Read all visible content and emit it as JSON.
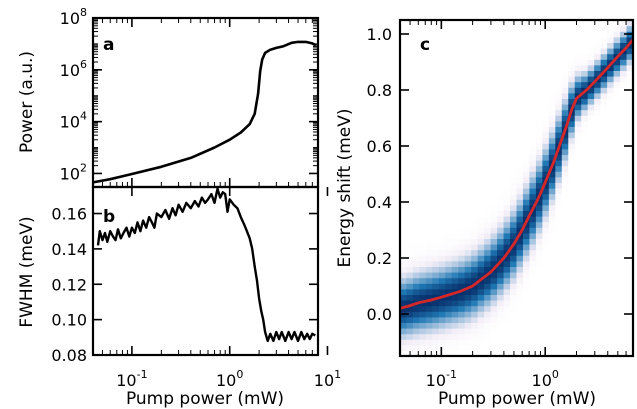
{
  "chart_data": [
    {
      "panel": "a",
      "type": "line",
      "ylabel": "Power (a.u.)",
      "xscale": "log",
      "yscale": "log",
      "xlim": [
        0.04,
        8
      ],
      "ylim": [
        30,
        100000000
      ],
      "yticks": [
        {
          "value": 100,
          "base": "10",
          "exp": "2"
        },
        {
          "value": 10000,
          "base": "10",
          "exp": "4"
        },
        {
          "value": 1000000,
          "base": "10",
          "exp": "6"
        },
        {
          "value": 100000000,
          "base": "10",
          "exp": "8"
        }
      ],
      "x": [
        0.04,
        0.06,
        0.1,
        0.2,
        0.4,
        0.7,
        1.0,
        1.3,
        1.6,
        1.8,
        1.95,
        2.05,
        2.15,
        2.3,
        2.6,
        3.0,
        3.5,
        4.3,
        5.0,
        6.0,
        7.0,
        7.6
      ],
      "values": [
        45,
        60,
        95,
        180,
        400,
        1000,
        2000,
        3800,
        8000,
        20000,
        120000,
        900000,
        2500000,
        4500000,
        6000000,
        7000000,
        8000000,
        11000000,
        12000000,
        12000000,
        10500000,
        9000000
      ],
      "color": "#000000"
    },
    {
      "panel": "b",
      "type": "line",
      "ylabel": "FWHM (meV)",
      "xlabel": "Pump power (mW)",
      "xscale": "log",
      "xlim": [
        0.04,
        8
      ],
      "ylim": [
        0.08,
        0.175
      ],
      "yticks": [
        "0.08",
        "0.10",
        "0.12",
        "0.14",
        "0.16"
      ],
      "xticks": [
        {
          "value": 0.1,
          "base": "10",
          "exp": "-1"
        },
        {
          "value": 1,
          "base": "10",
          "exp": "0"
        },
        {
          "value": 10,
          "base": "10",
          "exp": "1"
        }
      ],
      "x": [
        0.045,
        0.047,
        0.05,
        0.053,
        0.056,
        0.06,
        0.064,
        0.068,
        0.072,
        0.077,
        0.082,
        0.088,
        0.094,
        0.1,
        0.107,
        0.114,
        0.122,
        0.13,
        0.14,
        0.15,
        0.16,
        0.17,
        0.18,
        0.2,
        0.22,
        0.24,
        0.26,
        0.28,
        0.3,
        0.33,
        0.36,
        0.4,
        0.44,
        0.48,
        0.52,
        0.56,
        0.6,
        0.65,
        0.7,
        0.75,
        0.8,
        0.85,
        0.9,
        0.95,
        1.0,
        1.1,
        1.2,
        1.3,
        1.4,
        1.5,
        1.6,
        1.7,
        1.8,
        1.9,
        2.0,
        2.1,
        2.2,
        2.3,
        2.45,
        2.6,
        2.8,
        3.0,
        3.2,
        3.4,
        3.7,
        4.0,
        4.3,
        4.6,
        5.0,
        5.4,
        5.8,
        6.2,
        6.6,
        7.0,
        7.5
      ],
      "values": [
        0.142,
        0.15,
        0.145,
        0.149,
        0.144,
        0.15,
        0.147,
        0.145,
        0.151,
        0.146,
        0.149,
        0.152,
        0.147,
        0.152,
        0.149,
        0.155,
        0.15,
        0.156,
        0.152,
        0.158,
        0.155,
        0.152,
        0.16,
        0.158,
        0.162,
        0.157,
        0.163,
        0.159,
        0.165,
        0.161,
        0.166,
        0.163,
        0.167,
        0.164,
        0.169,
        0.166,
        0.168,
        0.171,
        0.166,
        0.174,
        0.169,
        0.172,
        0.171,
        0.161,
        0.168,
        0.165,
        0.163,
        0.158,
        0.154,
        0.15,
        0.146,
        0.14,
        0.13,
        0.122,
        0.112,
        0.105,
        0.1,
        0.093,
        0.088,
        0.092,
        0.088,
        0.093,
        0.089,
        0.093,
        0.088,
        0.093,
        0.089,
        0.093,
        0.088,
        0.093,
        0.089,
        0.092,
        0.089,
        0.092,
        0.091
      ],
      "color": "#000000"
    },
    {
      "panel": "c",
      "type": "heatmap",
      "xlabel": "Pump power (mW)",
      "ylabel": "Energy shift (meV)",
      "xscale": "log",
      "xlim": [
        0.04,
        7
      ],
      "ylim": [
        -0.15,
        1.05
      ],
      "yticks": [
        "0.0",
        "0.2",
        "0.4",
        "0.6",
        "0.8",
        "1.0"
      ],
      "xticks": [
        {
          "value": 0.1,
          "base": "10",
          "exp": "-1"
        },
        {
          "value": 1,
          "base": "10",
          "exp": "0"
        }
      ],
      "peak_x": [
        0.04,
        0.05,
        0.06,
        0.08,
        0.1,
        0.15,
        0.2,
        0.3,
        0.4,
        0.5,
        0.6,
        0.7,
        0.8,
        0.9,
        1.0,
        1.2,
        1.4,
        1.6,
        1.8,
        2.0,
        2.5,
        3.0,
        4.0,
        5.0,
        6.0,
        7.0
      ],
      "peak_y": [
        0.02,
        0.03,
        0.04,
        0.05,
        0.06,
        0.08,
        0.1,
        0.15,
        0.2,
        0.25,
        0.3,
        0.35,
        0.39,
        0.43,
        0.47,
        0.54,
        0.61,
        0.67,
        0.73,
        0.77,
        0.8,
        0.83,
        0.88,
        0.92,
        0.95,
        0.98
      ],
      "linewidth_meV": [
        0.145,
        0.148,
        0.15,
        0.152,
        0.152,
        0.155,
        0.158,
        0.162,
        0.165,
        0.167,
        0.169,
        0.171,
        0.172,
        0.17,
        0.168,
        0.163,
        0.156,
        0.146,
        0.13,
        0.112,
        0.09,
        0.09,
        0.09,
        0.09,
        0.09,
        0.09
      ],
      "colormap": [
        "#ffffff",
        "#f3eef7",
        "#1f78b4",
        "#08306b"
      ],
      "line_color": "#d62728"
    }
  ]
}
